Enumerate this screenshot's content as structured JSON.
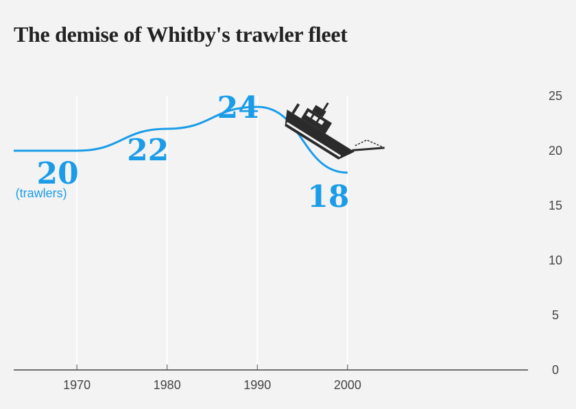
{
  "title": "The demise of Whitby's trawler fleet",
  "chart_data": {
    "type": "line",
    "title": "The demise of Whitby's trawler fleet",
    "x": [
      1963,
      1970,
      1980,
      1990,
      2000
    ],
    "values": [
      20,
      20,
      22,
      24,
      18
    ],
    "xlim": [
      1963,
      2020
    ],
    "ylim": [
      0,
      25
    ],
    "x_ticks": [
      1970,
      1980,
      1990,
      2000
    ],
    "y_ticks": [
      0,
      5,
      10,
      15,
      20,
      25
    ],
    "y_axis_side": "right",
    "grid": "vertical",
    "data_labels": [
      {
        "x": 1970,
        "value": "20"
      },
      {
        "x": 1980,
        "value": "22"
      },
      {
        "x": 1990,
        "value": "24"
      },
      {
        "x": 2000,
        "value": "18"
      }
    ],
    "unit_label": "(trawlers)",
    "series_color": "#1a9ce8",
    "annotation_icon": "sinking-trawler-icon"
  }
}
